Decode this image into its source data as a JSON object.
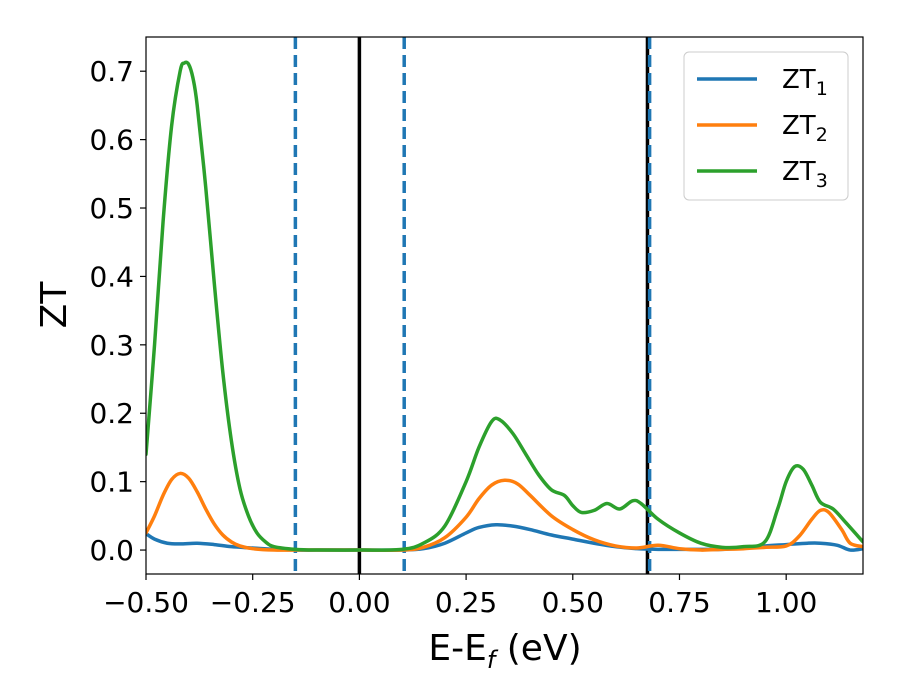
{
  "chart_data": {
    "type": "line",
    "title": "",
    "xlabel": "E-E",
    "xlabel_sub": "f",
    "xlabel_unit": " (eV)",
    "ylabel": "ZT",
    "xlim": [
      -0.5,
      1.18
    ],
    "ylim": [
      -0.035,
      0.75
    ],
    "grid": false,
    "legend_position": "top-right",
    "xticks": [
      -0.5,
      -0.25,
      0.0,
      0.25,
      0.5,
      0.75,
      1.0
    ],
    "xtick_labels": [
      "−0.50",
      "−0.25",
      "0.00",
      "0.25",
      "0.50",
      "0.75",
      "1.00"
    ],
    "yticks": [
      0.0,
      0.1,
      0.2,
      0.3,
      0.4,
      0.5,
      0.6,
      0.7
    ],
    "ytick_labels": [
      "0.0",
      "0.1",
      "0.2",
      "0.3",
      "0.4",
      "0.5",
      "0.6",
      "0.7"
    ],
    "vertical_lines": [
      {
        "x": -0.15,
        "color": "#1f77b4",
        "style": "dashed"
      },
      {
        "x": 0.0,
        "color": "#000000",
        "style": "solid"
      },
      {
        "x": 0.105,
        "color": "#1f77b4",
        "style": "dashed"
      },
      {
        "x": 0.675,
        "color": "#000000",
        "style": "solid"
      },
      {
        "x": 0.68,
        "color": "#1f77b4",
        "style": "dashed"
      }
    ],
    "series": [
      {
        "name": "ZT",
        "sub": "1",
        "color": "#1f77b4",
        "x": [
          -0.5,
          -0.48,
          -0.45,
          -0.42,
          -0.38,
          -0.34,
          -0.3,
          -0.25,
          -0.2,
          -0.15,
          -0.1,
          0.0,
          0.1,
          0.15,
          0.2,
          0.25,
          0.28,
          0.32,
          0.36,
          0.4,
          0.45,
          0.5,
          0.55,
          0.6,
          0.65,
          0.7,
          0.75,
          0.8,
          0.85,
          0.9,
          0.95,
          1.0,
          1.05,
          1.08,
          1.12,
          1.15,
          1.18
        ],
        "y": [
          0.024,
          0.016,
          0.01,
          0.009,
          0.01,
          0.008,
          0.005,
          0.003,
          0.001,
          0.0,
          0.0,
          0.0,
          0.0,
          0.002,
          0.01,
          0.025,
          0.033,
          0.037,
          0.035,
          0.03,
          0.022,
          0.016,
          0.01,
          0.005,
          0.002,
          0.001,
          0.001,
          0.001,
          0.001,
          0.003,
          0.006,
          0.008,
          0.01,
          0.01,
          0.007,
          0.0,
          0.002
        ]
      },
      {
        "name": "ZT",
        "sub": "2",
        "color": "#ff7f0e",
        "x": [
          -0.5,
          -0.48,
          -0.46,
          -0.44,
          -0.42,
          -0.4,
          -0.38,
          -0.36,
          -0.34,
          -0.32,
          -0.3,
          -0.28,
          -0.25,
          -0.2,
          -0.15,
          -0.1,
          0.0,
          0.1,
          0.15,
          0.2,
          0.25,
          0.28,
          0.31,
          0.34,
          0.37,
          0.4,
          0.45,
          0.5,
          0.55,
          0.6,
          0.65,
          0.7,
          0.75,
          0.8,
          0.85,
          0.9,
          0.95,
          1.0,
          1.03,
          1.06,
          1.08,
          1.1,
          1.13,
          1.15,
          1.18
        ],
        "y": [
          0.025,
          0.05,
          0.08,
          0.103,
          0.112,
          0.105,
          0.085,
          0.06,
          0.038,
          0.022,
          0.012,
          0.006,
          0.002,
          0.0,
          0.0,
          0.0,
          0.0,
          0.0,
          0.004,
          0.018,
          0.048,
          0.075,
          0.095,
          0.102,
          0.097,
          0.08,
          0.05,
          0.03,
          0.015,
          0.006,
          0.003,
          0.007,
          0.002,
          0.0,
          0.001,
          0.002,
          0.004,
          0.006,
          0.02,
          0.045,
          0.058,
          0.055,
          0.03,
          0.01,
          0.005
        ]
      },
      {
        "name": "ZT",
        "sub": "3",
        "color": "#2ca02c",
        "x": [
          -0.5,
          -0.48,
          -0.46,
          -0.44,
          -0.42,
          -0.41,
          -0.4,
          -0.39,
          -0.38,
          -0.36,
          -0.34,
          -0.32,
          -0.3,
          -0.28,
          -0.26,
          -0.24,
          -0.22,
          -0.2,
          -0.15,
          -0.1,
          0.0,
          0.1,
          0.15,
          0.2,
          0.25,
          0.28,
          0.31,
          0.33,
          0.36,
          0.39,
          0.42,
          0.45,
          0.48,
          0.5,
          0.52,
          0.55,
          0.58,
          0.61,
          0.64,
          0.66,
          0.7,
          0.75,
          0.8,
          0.85,
          0.9,
          0.95,
          0.98,
          1.0,
          1.02,
          1.04,
          1.06,
          1.08,
          1.11,
          1.14,
          1.18
        ],
        "y": [
          0.14,
          0.3,
          0.48,
          0.62,
          0.7,
          0.712,
          0.71,
          0.69,
          0.65,
          0.53,
          0.39,
          0.26,
          0.16,
          0.09,
          0.05,
          0.025,
          0.012,
          0.005,
          0.001,
          0.0,
          0.0,
          0.001,
          0.01,
          0.035,
          0.1,
          0.15,
          0.188,
          0.19,
          0.17,
          0.14,
          0.11,
          0.088,
          0.08,
          0.065,
          0.055,
          0.058,
          0.068,
          0.06,
          0.072,
          0.068,
          0.045,
          0.025,
          0.01,
          0.004,
          0.005,
          0.012,
          0.06,
          0.1,
          0.122,
          0.118,
          0.095,
          0.07,
          0.06,
          0.04,
          0.012
        ]
      }
    ]
  }
}
